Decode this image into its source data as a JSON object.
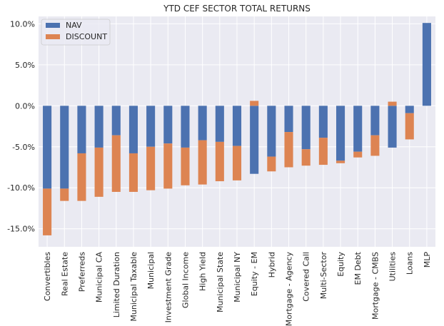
{
  "chart_data": {
    "type": "bar",
    "stacked": true,
    "title": "YTD CEF SECTOR TOTAL RETURNS",
    "xlabel": "",
    "ylabel": "",
    "ylim": [
      -17.2,
      10.9
    ],
    "yticks": [
      10,
      5,
      0,
      -5,
      -10,
      -15
    ],
    "ytick_labels": [
      "10.0%",
      "5.0%",
      "0.0%",
      "-5.0%",
      "-10.0%",
      "-15.0%"
    ],
    "grid": true,
    "legend_position": "top-left",
    "categories": [
      "Convertibles",
      "Real Estate",
      "Preferreds",
      "Municipal CA",
      "Limited Duration",
      "Municipal Taxable",
      "Municipal",
      "Investment Grade",
      "Global Income",
      "High Yield",
      "Municipal State",
      "Municipal NY",
      "Equity - EM",
      "Hybrid",
      "Mortgage - Agency",
      "Covered Call",
      "Multi-Sector",
      "Equity",
      "EM Debt",
      "Mortgage - CMBS",
      "Utilities",
      "Loans",
      "MLP"
    ],
    "series": [
      {
        "name": "NAV",
        "color": "#4c72b0",
        "values": [
          -10.1,
          -10.1,
          -5.8,
          -5.1,
          -3.6,
          -5.8,
          -5.0,
          -4.6,
          -5.1,
          -4.2,
          -4.4,
          -4.9,
          -8.3,
          -6.2,
          -3.2,
          -5.3,
          -3.9,
          -6.7,
          -5.6,
          -3.6,
          -5.1,
          -0.9,
          10.1
        ]
      },
      {
        "name": "DISCOUNT",
        "color": "#dd8452",
        "values": [
          -5.7,
          -1.5,
          -5.8,
          -6.0,
          -6.9,
          -4.7,
          -5.3,
          -5.5,
          -4.6,
          -5.4,
          -4.8,
          -4.2,
          0.6,
          -1.8,
          -4.3,
          -2.0,
          -3.3,
          -0.3,
          -0.7,
          -2.5,
          0.5,
          -3.2,
          0.0
        ]
      }
    ]
  }
}
